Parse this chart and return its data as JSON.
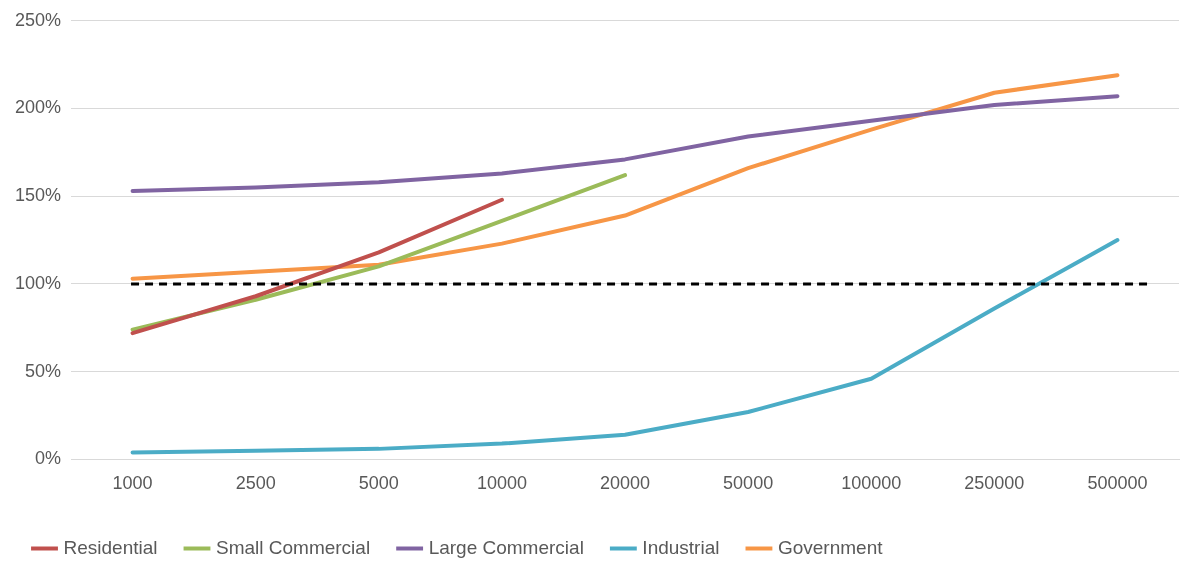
{
  "chart_data": {
    "type": "line",
    "categories": [
      "1000",
      "2500",
      "5000",
      "10000",
      "20000",
      "50000",
      "100000",
      "250000",
      "500000"
    ],
    "series": [
      {
        "name": "Residential",
        "color": "#c0504d",
        "values": [
          72,
          93,
          118,
          148,
          null,
          null,
          null,
          null,
          null
        ]
      },
      {
        "name": "Small Commercial",
        "color": "#9bbb59",
        "values": [
          74,
          91,
          110,
          136,
          162,
          null,
          null,
          null,
          null
        ]
      },
      {
        "name": "Large Commercial",
        "color": "#8064a2",
        "values": [
          153,
          155,
          158,
          163,
          171,
          184,
          193,
          202,
          207
        ]
      },
      {
        "name": "Industrial",
        "color": "#4bacc6",
        "values": [
          4,
          5,
          6,
          9,
          14,
          27,
          46,
          86,
          125
        ]
      },
      {
        "name": "Government",
        "color": "#f79646",
        "values": [
          103,
          107,
          111,
          123,
          139,
          166,
          188,
          209,
          219
        ]
      }
    ],
    "ylim": [
      0,
      250
    ],
    "yticks": [
      {
        "value": 0,
        "label": "0%"
      },
      {
        "value": 50,
        "label": "50%"
      },
      {
        "value": 100,
        "label": "100%"
      },
      {
        "value": 150,
        "label": "150%"
      },
      {
        "value": 200,
        "label": "200%"
      },
      {
        "value": 250,
        "label": "250%"
      }
    ],
    "ref_lines": [
      {
        "axis": "y",
        "value": 100,
        "color": "#000000",
        "line_style": "dashed"
      }
    ],
    "grid": "y",
    "legend": "bottom",
    "marker": "none",
    "line_style": "solid"
  }
}
